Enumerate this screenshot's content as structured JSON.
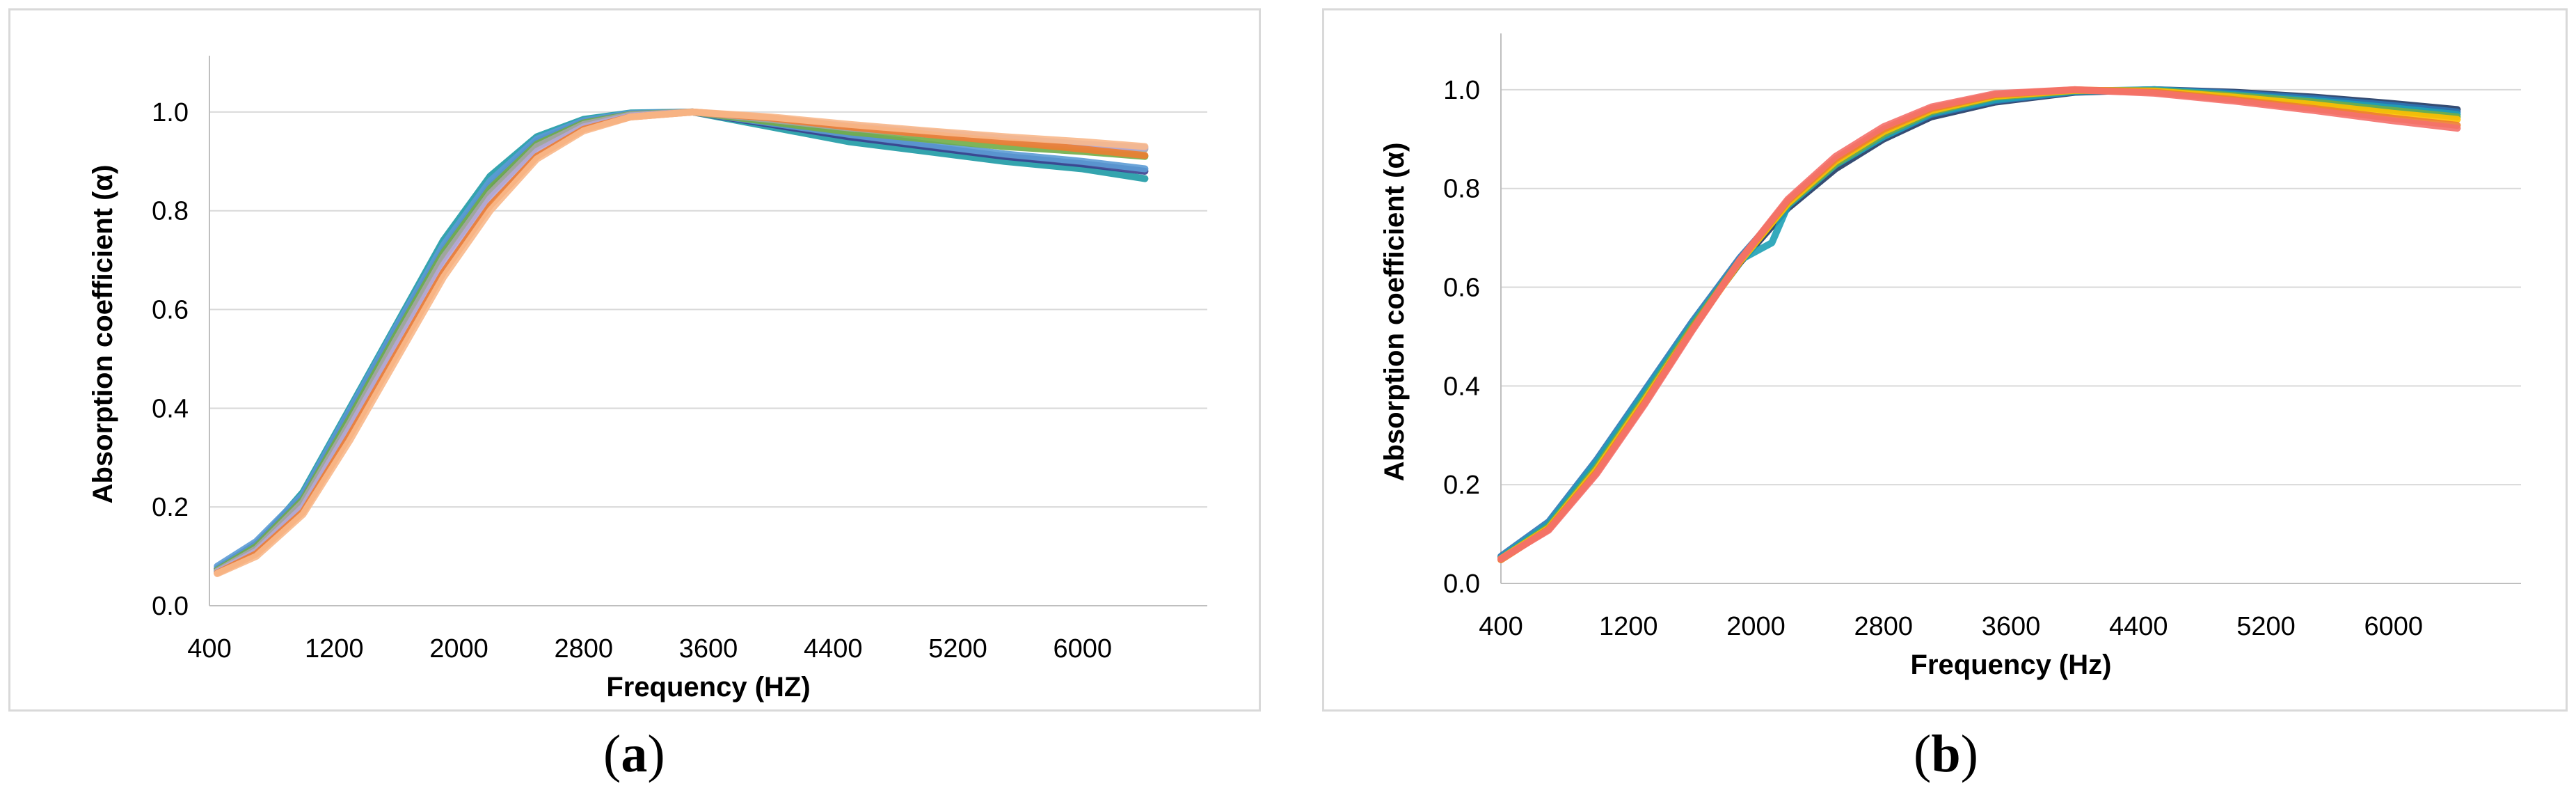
{
  "chart_data": [
    {
      "type": "line",
      "panel_label": "a",
      "xlabel": "Frequency (HZ)",
      "ylabel": "Absorption coefficient (α)",
      "xlim": [
        400,
        6800
      ],
      "ylim": [
        0,
        1.1
      ],
      "x_ticks": [
        "400",
        "1200",
        "2000",
        "2800",
        "3600",
        "4400",
        "5200",
        "6000"
      ],
      "y_ticks": [
        "0.0",
        "0.2",
        "0.4",
        "0.6",
        "0.8",
        "1.0"
      ],
      "grid": true,
      "legend": "none",
      "series": [
        {
          "color": "#1e9aa5",
          "points": [
            [
              450,
              0.07
            ],
            [
              700,
              0.12
            ],
            [
              1000,
              0.23
            ],
            [
              1300,
              0.4
            ],
            [
              1600,
              0.57
            ],
            [
              1900,
              0.74
            ],
            [
              2200,
              0.87
            ],
            [
              2500,
              0.95
            ],
            [
              2800,
              0.985
            ],
            [
              3100,
              0.998
            ],
            [
              3500,
              1.0
            ],
            [
              4000,
              0.97
            ],
            [
              4500,
              0.94
            ],
            [
              5000,
              0.92
            ],
            [
              5500,
              0.9
            ],
            [
              6000,
              0.885
            ],
            [
              6400,
              0.865
            ]
          ]
        },
        {
          "color": "#3a3f8f",
          "points": [
            [
              450,
              0.075
            ],
            [
              700,
              0.125
            ],
            [
              1000,
              0.22
            ],
            [
              1300,
              0.39
            ],
            [
              1600,
              0.56
            ],
            [
              1900,
              0.72
            ],
            [
              2200,
              0.85
            ],
            [
              2500,
              0.94
            ],
            [
              2800,
              0.98
            ],
            [
              3100,
              0.996
            ],
            [
              3500,
              1.0
            ],
            [
              4000,
              0.975
            ],
            [
              4500,
              0.95
            ],
            [
              5000,
              0.93
            ],
            [
              5500,
              0.91
            ],
            [
              6000,
              0.895
            ],
            [
              6400,
              0.88
            ]
          ]
        },
        {
          "color": "#5b9bd5",
          "points": [
            [
              450,
              0.08
            ],
            [
              700,
              0.13
            ],
            [
              1000,
              0.225
            ],
            [
              1300,
              0.395
            ],
            [
              1600,
              0.565
            ],
            [
              1900,
              0.73
            ],
            [
              2200,
              0.86
            ],
            [
              2500,
              0.945
            ],
            [
              2800,
              0.982
            ],
            [
              3100,
              0.997
            ],
            [
              3500,
              1.0
            ],
            [
              4000,
              0.978
            ],
            [
              4500,
              0.955
            ],
            [
              5000,
              0.935
            ],
            [
              5500,
              0.915
            ],
            [
              6000,
              0.9
            ],
            [
              6400,
              0.885
            ]
          ]
        },
        {
          "color": "#70ad47",
          "points": [
            [
              450,
              0.072
            ],
            [
              700,
              0.12
            ],
            [
              1000,
              0.215
            ],
            [
              1300,
              0.38
            ],
            [
              1600,
              0.55
            ],
            [
              1900,
              0.715
            ],
            [
              2200,
              0.845
            ],
            [
              2500,
              0.935
            ],
            [
              2800,
              0.978
            ],
            [
              3100,
              0.995
            ],
            [
              3500,
              1.0
            ],
            [
              4000,
              0.98
            ],
            [
              4500,
              0.96
            ],
            [
              5000,
              0.945
            ],
            [
              5500,
              0.93
            ],
            [
              6000,
              0.92
            ],
            [
              6400,
              0.91
            ]
          ]
        },
        {
          "color": "#a5a5a5",
          "points": [
            [
              450,
              0.07
            ],
            [
              700,
              0.115
            ],
            [
              1000,
              0.21
            ],
            [
              1300,
              0.37
            ],
            [
              1600,
              0.54
            ],
            [
              1900,
              0.705
            ],
            [
              2200,
              0.835
            ],
            [
              2500,
              0.93
            ],
            [
              2800,
              0.975
            ],
            [
              3100,
              0.994
            ],
            [
              3500,
              1.0
            ],
            [
              4000,
              0.985
            ],
            [
              4500,
              0.968
            ],
            [
              5000,
              0.955
            ],
            [
              5500,
              0.942
            ],
            [
              6000,
              0.93
            ],
            [
              6400,
              0.925
            ]
          ]
        },
        {
          "color": "#b4a7d6",
          "points": [
            [
              450,
              0.068
            ],
            [
              700,
              0.11
            ],
            [
              1000,
              0.2
            ],
            [
              1300,
              0.36
            ],
            [
              1600,
              0.525
            ],
            [
              1900,
              0.69
            ],
            [
              2200,
              0.825
            ],
            [
              2500,
              0.92
            ],
            [
              2800,
              0.97
            ],
            [
              3100,
              0.992
            ],
            [
              3500,
              1.0
            ],
            [
              4000,
              0.988
            ],
            [
              4500,
              0.972
            ],
            [
              5000,
              0.96
            ],
            [
              5500,
              0.947
            ],
            [
              6000,
              0.935
            ],
            [
              6400,
              0.928
            ]
          ]
        },
        {
          "color": "#ed7d31",
          "points": [
            [
              450,
              0.066
            ],
            [
              700,
              0.105
            ],
            [
              1000,
              0.19
            ],
            [
              1300,
              0.345
            ],
            [
              1600,
              0.51
            ],
            [
              1900,
              0.675
            ],
            [
              2200,
              0.81
            ],
            [
              2500,
              0.91
            ],
            [
              2800,
              0.965
            ],
            [
              3100,
              0.99
            ],
            [
              3500,
              1.0
            ],
            [
              4000,
              0.988
            ],
            [
              4500,
              0.97
            ],
            [
              5000,
              0.955
            ],
            [
              5500,
              0.94
            ],
            [
              6000,
              0.925
            ],
            [
              6400,
              0.912
            ]
          ]
        },
        {
          "color": "#f8b88b",
          "points": [
            [
              450,
              0.065
            ],
            [
              700,
              0.1
            ],
            [
              1000,
              0.185
            ],
            [
              1300,
              0.335
            ],
            [
              1600,
              0.5
            ],
            [
              1900,
              0.665
            ],
            [
              2200,
              0.8
            ],
            [
              2500,
              0.905
            ],
            [
              2800,
              0.962
            ],
            [
              3100,
              0.99
            ],
            [
              3500,
              1.0
            ],
            [
              4000,
              0.99
            ],
            [
              4500,
              0.975
            ],
            [
              5000,
              0.962
            ],
            [
              5500,
              0.95
            ],
            [
              6000,
              0.94
            ],
            [
              6400,
              0.93
            ]
          ]
        }
      ]
    },
    {
      "type": "line",
      "panel_label": "b",
      "xlabel": "Frequency (Hz)",
      "ylabel": "Absorption coefficient (α)",
      "xlim": [
        400,
        6800
      ],
      "ylim": [
        0,
        1.1
      ],
      "x_ticks": [
        "400",
        "1200",
        "2000",
        "2800",
        "3600",
        "4400",
        "5200",
        "6000"
      ],
      "y_ticks": [
        "0.0",
        "0.2",
        "0.4",
        "0.6",
        "0.8",
        "1.0"
      ],
      "grid": true,
      "legend": "none",
      "series": [
        {
          "color": "#1f3864",
          "points": [
            [
              400,
              0.05
            ],
            [
              700,
              0.12
            ],
            [
              1000,
              0.24
            ],
            [
              1300,
              0.38
            ],
            [
              1600,
              0.52
            ],
            [
              1900,
              0.65
            ],
            [
              2200,
              0.76
            ],
            [
              2500,
              0.84
            ],
            [
              2800,
              0.9
            ],
            [
              3100,
              0.945
            ],
            [
              3500,
              0.975
            ],
            [
              4000,
              0.995
            ],
            [
              4500,
              1.0
            ],
            [
              5000,
              0.995
            ],
            [
              5500,
              0.985
            ],
            [
              6000,
              0.972
            ],
            [
              6400,
              0.96
            ]
          ]
        },
        {
          "color": "#2e75b6",
          "points": [
            [
              400,
              0.055
            ],
            [
              700,
              0.125
            ],
            [
              1000,
              0.25
            ],
            [
              1300,
              0.39
            ],
            [
              1600,
              0.53
            ],
            [
              1900,
              0.66
            ],
            [
              2200,
              0.77
            ],
            [
              2500,
              0.85
            ],
            [
              2800,
              0.905
            ],
            [
              3100,
              0.95
            ],
            [
              3500,
              0.978
            ],
            [
              4000,
              0.996
            ],
            [
              4500,
              1.0
            ],
            [
              5000,
              0.993
            ],
            [
              5500,
              0.982
            ],
            [
              6000,
              0.968
            ],
            [
              6400,
              0.955
            ]
          ]
        },
        {
          "color": "#1fa1b5",
          "points": [
            [
              400,
              0.052
            ],
            [
              700,
              0.12
            ],
            [
              1000,
              0.245
            ],
            [
              1300,
              0.385
            ],
            [
              1600,
              0.525
            ],
            [
              1900,
              0.655
            ],
            [
              2100,
              0.69
            ],
            [
              2200,
              0.765
            ],
            [
              2500,
              0.848
            ],
            [
              2800,
              0.905
            ],
            [
              3100,
              0.952
            ],
            [
              3500,
              0.98
            ],
            [
              4000,
              0.997
            ],
            [
              4500,
              1.0
            ],
            [
              5000,
              0.99
            ],
            [
              5500,
              0.978
            ],
            [
              6000,
              0.963
            ],
            [
              6400,
              0.95
            ]
          ]
        },
        {
          "color": "#70ad47",
          "points": [
            [
              400,
              0.05
            ],
            [
              700,
              0.115
            ],
            [
              1000,
              0.235
            ],
            [
              1300,
              0.375
            ],
            [
              1600,
              0.52
            ],
            [
              1900,
              0.655
            ],
            [
              2200,
              0.768
            ],
            [
              2500,
              0.85
            ],
            [
              2800,
              0.91
            ],
            [
              3100,
              0.955
            ],
            [
              3500,
              0.985
            ],
            [
              4000,
              0.998
            ],
            [
              4500,
              0.998
            ],
            [
              5000,
              0.988
            ],
            [
              5500,
              0.975
            ],
            [
              6000,
              0.958
            ],
            [
              6400,
              0.945
            ]
          ]
        },
        {
          "color": "#ffc000",
          "points": [
            [
              400,
              0.05
            ],
            [
              700,
              0.112
            ],
            [
              1000,
              0.23
            ],
            [
              1300,
              0.37
            ],
            [
              1600,
              0.515
            ],
            [
              1900,
              0.652
            ],
            [
              2200,
              0.77
            ],
            [
              2500,
              0.855
            ],
            [
              2800,
              0.915
            ],
            [
              3100,
              0.958
            ],
            [
              3500,
              0.987
            ],
            [
              4000,
              0.999
            ],
            [
              4500,
              0.997
            ],
            [
              5000,
              0.985
            ],
            [
              5500,
              0.97
            ],
            [
              6000,
              0.952
            ],
            [
              6400,
              0.94
            ]
          ]
        },
        {
          "color": "#ed7d31",
          "points": [
            [
              400,
              0.048
            ],
            [
              700,
              0.11
            ],
            [
              1000,
              0.225
            ],
            [
              1300,
              0.365
            ],
            [
              1600,
              0.515
            ],
            [
              1900,
              0.655
            ],
            [
              2200,
              0.775
            ],
            [
              2500,
              0.86
            ],
            [
              2800,
              0.92
            ],
            [
              3100,
              0.962
            ],
            [
              3500,
              0.99
            ],
            [
              4000,
              1.0
            ],
            [
              4500,
              0.995
            ],
            [
              5000,
              0.98
            ],
            [
              5500,
              0.962
            ],
            [
              6000,
              0.942
            ],
            [
              6400,
              0.928
            ]
          ]
        },
        {
          "color": "#f4706b",
          "points": [
            [
              400,
              0.05
            ],
            [
              700,
              0.108
            ],
            [
              1000,
              0.222
            ],
            [
              1300,
              0.362
            ],
            [
              1600,
              0.512
            ],
            [
              1900,
              0.655
            ],
            [
              2200,
              0.778
            ],
            [
              2500,
              0.865
            ],
            [
              2800,
              0.925
            ],
            [
              3100,
              0.965
            ],
            [
              3500,
              0.992
            ],
            [
              4000,
              1.0
            ],
            [
              4500,
              0.993
            ],
            [
              5000,
              0.977
            ],
            [
              5500,
              0.958
            ],
            [
              6000,
              0.937
            ],
            [
              6400,
              0.922
            ]
          ]
        }
      ]
    }
  ]
}
